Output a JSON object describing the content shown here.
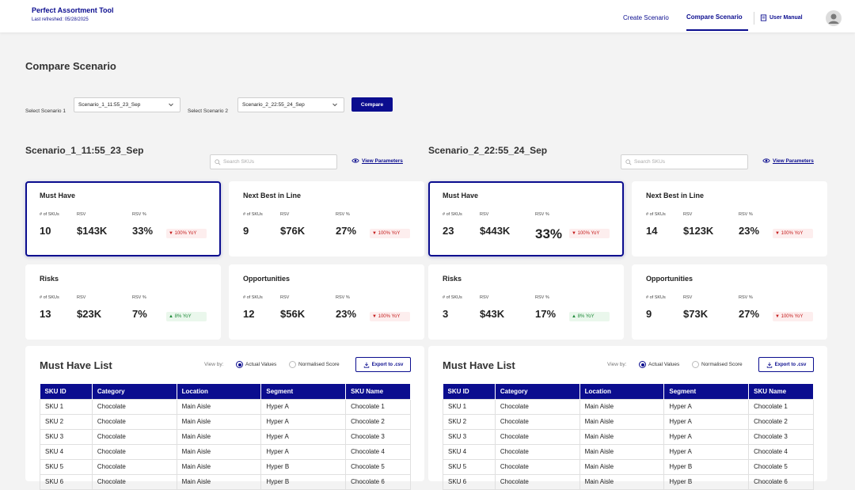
{
  "header": {
    "app_title": "Perfect Assortment Tool",
    "last_refreshed": "Last refreshed: 05/28/2025",
    "nav": {
      "create": "Create Scenario",
      "compare": "Compare Scenario",
      "manual": "User Manual"
    }
  },
  "page_title": "Compare Scenario",
  "selectors": {
    "label1": "Select Scenario 1",
    "value1": "Scenario_1_11:55_23_Sep",
    "label2": "Select Scenario 2",
    "value2": "Scenario_2_22:55_24_Sep",
    "compare_button": "Compare"
  },
  "search_placeholder": "Search SKUs",
  "view_parameters": "View Parameters",
  "metric_labels": {
    "skus": "# of SKUs",
    "rsv": "RSV",
    "rsv_pct": "RSV %"
  },
  "scenarios": [
    {
      "title": "Scenario_1_11:55_23_Sep",
      "cards": [
        {
          "title": "Must Have",
          "skus": "10",
          "rsv": "$143K",
          "rsv_pct": "33%",
          "yoy": "100% YoY",
          "dir": "down"
        },
        {
          "title": "Next Best in Line",
          "skus": "9",
          "rsv": "$76K",
          "rsv_pct": "27%",
          "yoy": "100% YoY",
          "dir": "down"
        },
        {
          "title": "Risks",
          "skus": "13",
          "rsv": "$23K",
          "rsv_pct": "7%",
          "yoy": "8% YoY",
          "dir": "up"
        },
        {
          "title": "Opportunities",
          "skus": "12",
          "rsv": "$56K",
          "rsv_pct": "23%",
          "yoy": "100% YoY",
          "dir": "down"
        }
      ]
    },
    {
      "title": "Scenario_2_22:55_24_Sep",
      "cards": [
        {
          "title": "Must Have",
          "skus": "23",
          "rsv": "$443K",
          "rsv_pct": "33%",
          "yoy": "100% YoY",
          "dir": "down"
        },
        {
          "title": "Next Best in Line",
          "skus": "14",
          "rsv": "$123K",
          "rsv_pct": "23%",
          "yoy": "100% YoY",
          "dir": "down"
        },
        {
          "title": "Risks",
          "skus": "3",
          "rsv": "$43K",
          "rsv_pct": "17%",
          "yoy": "8% YoY",
          "dir": "up"
        },
        {
          "title": "Opportunities",
          "skus": "9",
          "rsv": "$73K",
          "rsv_pct": "27%",
          "yoy": "100% YoY",
          "dir": "down"
        }
      ]
    }
  ],
  "list": {
    "title": "Must Have List",
    "view_by": "View by:",
    "actual": "Actual Values",
    "normalised": "Normalised Score",
    "export": "Export to .csv",
    "columns": [
      "SKU ID",
      "Category",
      "Location",
      "Segment",
      "SKU Name"
    ],
    "rows": [
      [
        "SKU 1",
        "Chocolate",
        "Main Aisle",
        "Hyper A",
        "Chocolate 1"
      ],
      [
        "SKU 2",
        "Chocolate",
        "Main Aisle",
        "Hyper A",
        "Chocolate 2"
      ],
      [
        "SKU 3",
        "Chocolate",
        "Main Aisle",
        "Hyper A",
        "Chocolate 3"
      ],
      [
        "SKU 4",
        "Chocolate",
        "Main Aisle",
        "Hyper A",
        "Chocolate 4"
      ],
      [
        "SKU 5",
        "Chocolate",
        "Main Aisle",
        "Hyper B",
        "Chocolate 5"
      ],
      [
        "SKU 6",
        "Chocolate",
        "Main Aisle",
        "Hyper B",
        "Chocolate 6"
      ]
    ]
  },
  "colors": {
    "brand": "#0b0d8f",
    "down": "#c41c1c",
    "up": "#1f8a3a"
  },
  "icons": {
    "dropdown": "chevron-down-icon",
    "search": "search-icon",
    "eye": "eye-icon",
    "download": "download-icon",
    "manual": "book-icon",
    "user": "user-avatar-icon"
  }
}
